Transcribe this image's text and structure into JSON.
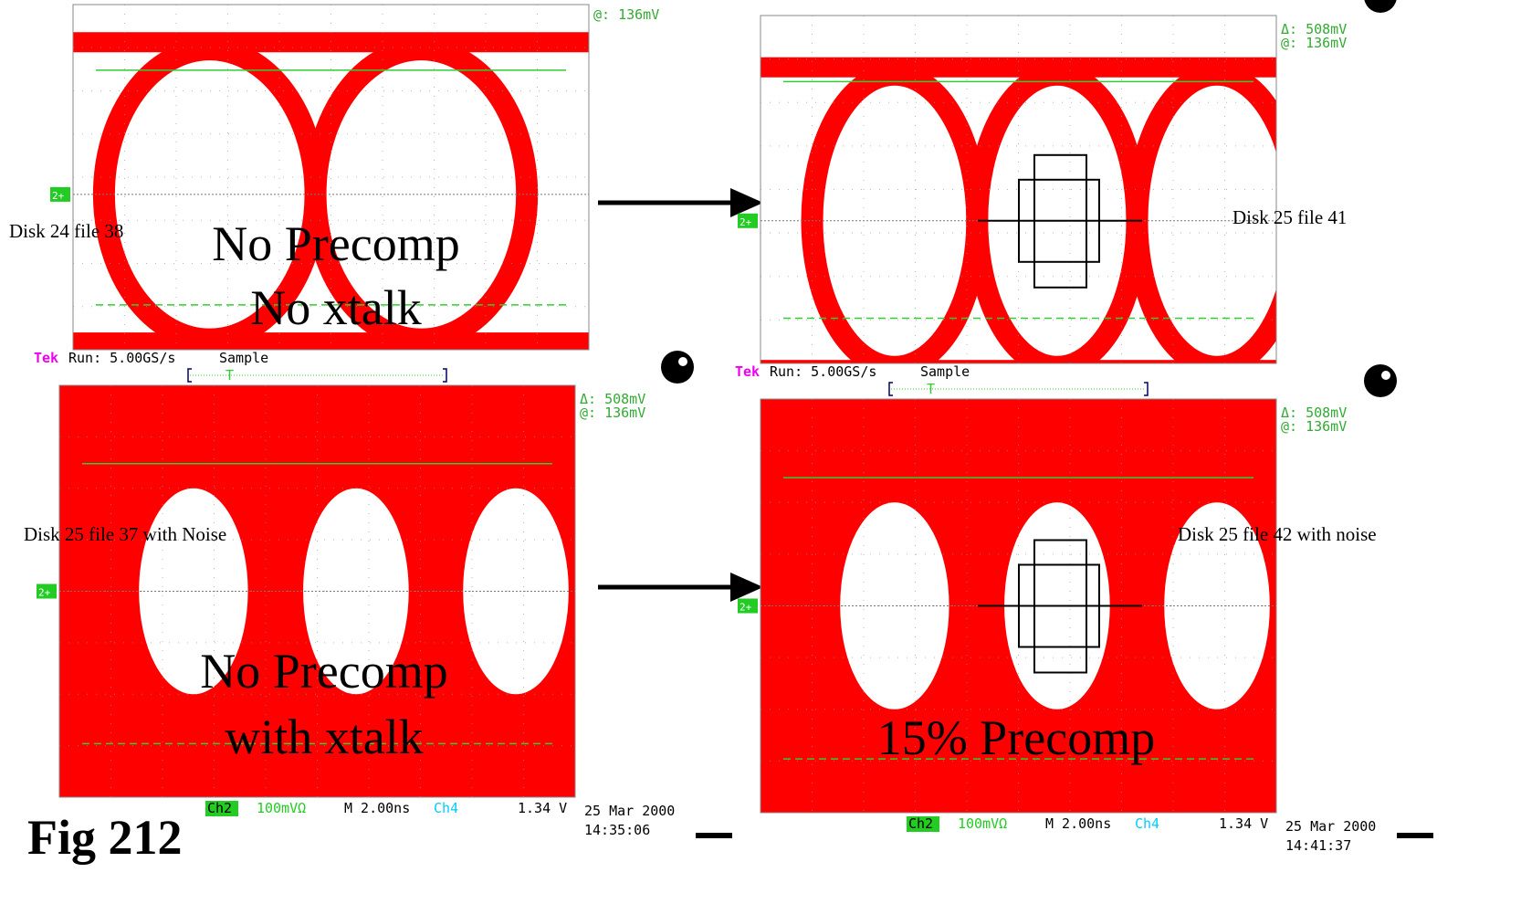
{
  "panels": [
    {
      "cursor_at": "@: 136mV",
      "side_label": "Disk 24 file 38",
      "caption": [
        "No Precomp",
        "No xtalk"
      ],
      "ground_marker": "2+"
    },
    {
      "cursor_delta": "Δ: 508mV",
      "cursor_at": "@: 136mV",
      "side_label": "Disk 25 file 41",
      "ground_marker": "2+"
    },
    {
      "header": {
        "brand": "Tek",
        "run": "Run: 5.00GS/s",
        "mode": "Sample",
        "trigger": "T"
      },
      "cursor_delta": "Δ: 508mV",
      "cursor_at": "@: 136mV",
      "side_label": "Disk 25 file 37 with Noise",
      "caption": [
        "No Precomp",
        "with xtalk"
      ],
      "ground_marker": "2+",
      "footer": {
        "channel": "Ch2",
        "scale": "100mVΩ",
        "timebase": "M 2.00ns",
        "trigger_channel": "Ch4",
        "trigger_level": "1.34 V",
        "date": "25 Mar 2000",
        "time": "14:35:06"
      }
    },
    {
      "header": {
        "brand": "Tek",
        "run": "Run: 5.00GS/s",
        "mode": "Sample",
        "trigger": "T"
      },
      "cursor_delta": "Δ: 508mV",
      "cursor_at": "@: 136mV",
      "side_label": "Disk 25 file 42 with noise",
      "caption": [
        "15% Precomp"
      ],
      "ground_marker": "2+",
      "footer": {
        "channel": "Ch2",
        "scale": "100mVΩ",
        "timebase": "M 2.00ns",
        "trigger_channel": "Ch4",
        "trigger_level": "1.34 V",
        "date": "25 Mar 2000",
        "time": "14:41:37"
      }
    }
  ],
  "fig_label": "Fig 212"
}
